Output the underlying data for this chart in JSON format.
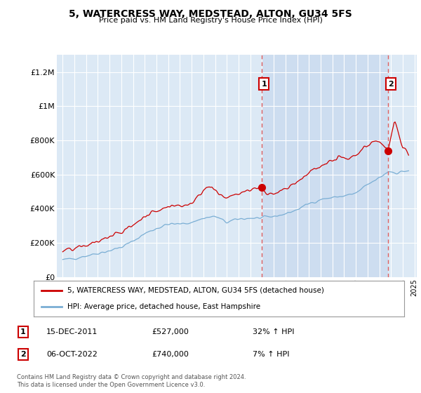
{
  "title": "5, WATERCRESS WAY, MEDSTEAD, ALTON, GU34 5FS",
  "subtitle": "Price paid vs. HM Land Registry's House Price Index (HPI)",
  "legend_label_red": "5, WATERCRESS WAY, MEDSTEAD, ALTON, GU34 5FS (detached house)",
  "legend_label_blue": "HPI: Average price, detached house, East Hampshire",
  "annotation1_label": "1",
  "annotation1_date": "15-DEC-2011",
  "annotation1_price": "£527,000",
  "annotation1_hpi": "32% ↑ HPI",
  "annotation2_label": "2",
  "annotation2_date": "06-OCT-2022",
  "annotation2_price": "£740,000",
  "annotation2_hpi": "7% ↑ HPI",
  "footer": "Contains HM Land Registry data © Crown copyright and database right 2024.\nThis data is licensed under the Open Government Licence v3.0.",
  "bg_color": "#dce9f5",
  "red_color": "#cc0000",
  "blue_color": "#7aaed4",
  "dashed_red": "#e06060",
  "shade_color": "#c8d8ee",
  "ylim": [
    0,
    1300000
  ],
  "yticks": [
    0,
    200000,
    400000,
    600000,
    800000,
    1000000,
    1200000
  ],
  "ytick_labels": [
    "£0",
    "£200K",
    "£400K",
    "£600K",
    "£800K",
    "£1M",
    "£1.2M"
  ],
  "sale1_year": 2011.96,
  "sale2_year": 2022.77,
  "sale1_price": 527000,
  "sale2_price": 740000
}
